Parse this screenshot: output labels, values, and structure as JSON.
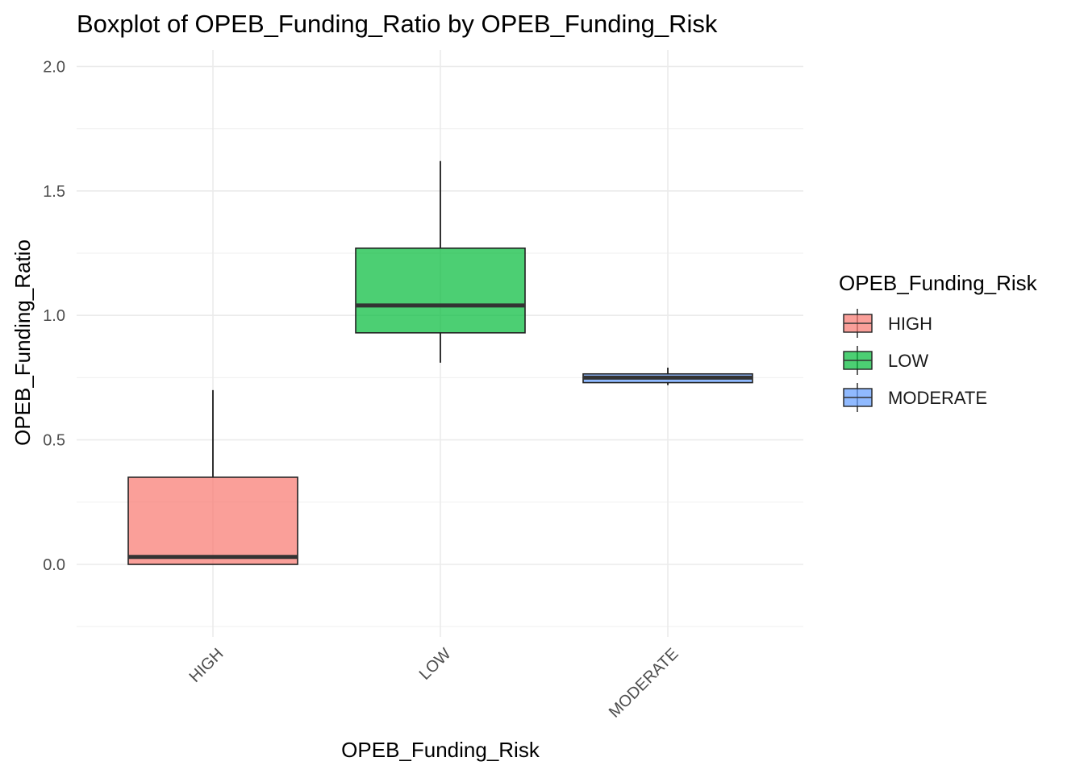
{
  "chart_data": {
    "type": "boxplot",
    "title": "Boxplot of OPEB_Funding_Ratio by OPEB_Funding_Risk",
    "xlabel": "OPEB_Funding_Risk",
    "ylabel": "OPEB_Funding_Ratio",
    "ylim": [
      -0.25,
      2.05
    ],
    "yticks": [
      0.0,
      0.5,
      1.0,
      1.5,
      2.0
    ],
    "ytick_labels": [
      "0.0",
      "0.5",
      "1.0",
      "1.5",
      "2.0"
    ],
    "categories": [
      "HIGH",
      "LOW",
      "MODERATE"
    ],
    "boxes": [
      {
        "category": "HIGH",
        "min": 0.0,
        "q1": 0.0,
        "median": 0.03,
        "q3": 0.35,
        "max": 0.7,
        "color": "#F8766D"
      },
      {
        "category": "LOW",
        "min": 0.81,
        "q1": 0.93,
        "median": 1.04,
        "q3": 1.27,
        "max": 1.62,
        "color": "#00BA38"
      },
      {
        "category": "MODERATE",
        "min": 0.72,
        "q1": 0.73,
        "median": 0.75,
        "q3": 0.765,
        "max": 0.79,
        "color": "#619CFF"
      }
    ],
    "grid": true,
    "legend": {
      "title": "OPEB_Funding_Risk",
      "position": "right",
      "entries": [
        "HIGH",
        "LOW",
        "MODERATE"
      ]
    }
  }
}
